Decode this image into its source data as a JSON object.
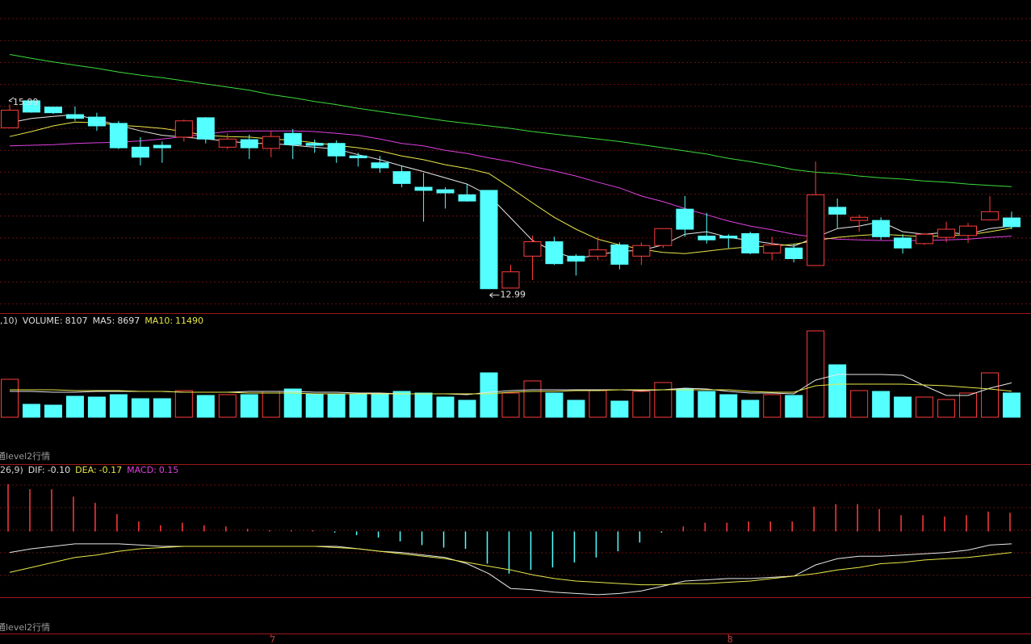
{
  "chart_data": [
    {
      "type": "candlestick",
      "up_color": "#ff3c3c",
      "down_color": "#54ffff",
      "ylim": [
        12.6,
        17.6
      ],
      "categories": [
        null,
        null,
        null,
        null,
        null,
        null,
        null,
        null,
        null,
        null,
        null,
        null,
        "7",
        null,
        null,
        null,
        null,
        null,
        null,
        null,
        null,
        null,
        null,
        null,
        null,
        null,
        null,
        null,
        null,
        null,
        null,
        null,
        null,
        "8",
        null,
        null,
        null,
        null,
        null,
        null,
        null,
        null,
        null,
        null,
        null,
        null,
        null
      ],
      "open": [
        15.56,
        15.99,
        15.89,
        15.77,
        15.73,
        15.63,
        15.25,
        15.28,
        15.41,
        15.72,
        15.25,
        15.37,
        15.23,
        15.47,
        15.31,
        15.31,
        15.11,
        15.0,
        14.86,
        14.61,
        14.57,
        14.49,
        14.56,
        13.0,
        13.51,
        13.74,
        13.51,
        13.51,
        13.69,
        13.51,
        13.68,
        14.26,
        13.83,
        13.83,
        13.87,
        13.56,
        13.64,
        13.36,
        14.29,
        14.08,
        14.08,
        13.8,
        13.71,
        13.81,
        13.84,
        14.09,
        14.12
      ],
      "high": [
        15.93,
        15.99,
        15.89,
        15.9,
        15.8,
        15.67,
        15.41,
        15.34,
        15.69,
        15.73,
        15.47,
        15.45,
        15.51,
        15.54,
        15.37,
        15.36,
        15.16,
        15.11,
        14.96,
        14.84,
        14.61,
        14.66,
        14.56,
        13.37,
        13.84,
        13.82,
        13.54,
        13.82,
        13.73,
        13.73,
        13.95,
        14.47,
        14.2,
        13.86,
        13.9,
        13.82,
        13.71,
        15.02,
        14.43,
        14.17,
        14.13,
        13.86,
        13.88,
        14.06,
        14.04,
        14.47,
        14.22
      ],
      "low": [
        15.56,
        15.8,
        15.78,
        15.67,
        15.51,
        15.22,
        14.96,
        15.0,
        15.34,
        15.31,
        15.22,
        15.06,
        15.09,
        15.06,
        15.16,
        15.0,
        14.94,
        14.84,
        14.61,
        14.06,
        14.27,
        14.38,
        12.99,
        13.0,
        13.13,
        13.37,
        13.2,
        13.45,
        13.3,
        13.37,
        13.64,
        13.82,
        13.71,
        13.64,
        13.54,
        13.45,
        13.41,
        13.36,
        13.96,
        13.9,
        13.77,
        13.55,
        13.69,
        13.73,
        13.72,
        14.08,
        13.94
      ],
      "close": [
        15.84,
        15.81,
        15.8,
        15.71,
        15.59,
        15.24,
        15.09,
        15.24,
        15.67,
        15.38,
        15.38,
        15.24,
        15.42,
        15.29,
        15.28,
        15.11,
        15.08,
        14.92,
        14.67,
        14.56,
        14.52,
        14.39,
        12.99,
        13.26,
        13.74,
        13.39,
        13.43,
        13.61,
        13.38,
        13.68,
        13.95,
        13.94,
        13.77,
        13.8,
        13.56,
        13.69,
        13.47,
        14.49,
        14.18,
        14.13,
        13.82,
        13.64,
        13.86,
        13.94,
        13.99,
        14.22,
        13.98
      ],
      "series": [
        {
          "color": "#3cdc3c",
          "values": [
            16.73,
            16.67,
            16.61,
            16.56,
            16.51,
            16.45,
            16.4,
            16.36,
            16.31,
            16.26,
            16.21,
            16.16,
            16.09,
            16.04,
            15.98,
            15.93,
            15.87,
            15.82,
            15.77,
            15.72,
            15.67,
            15.63,
            15.59,
            15.55,
            15.5,
            15.46,
            15.42,
            15.38,
            15.34,
            15.29,
            15.24,
            15.19,
            15.14,
            15.07,
            15.02,
            14.96,
            14.89,
            14.85,
            14.83,
            14.79,
            14.76,
            14.74,
            14.71,
            14.69,
            14.66,
            14.64,
            14.62
          ]
        },
        {
          "color": "#e040e0",
          "values": [
            15.27,
            15.28,
            15.29,
            15.31,
            15.32,
            15.33,
            15.35,
            15.38,
            15.42,
            15.46,
            15.5,
            15.51,
            15.51,
            15.51,
            15.5,
            15.47,
            15.44,
            15.38,
            15.31,
            15.27,
            15.2,
            15.15,
            15.08,
            15.02,
            14.94,
            14.87,
            14.79,
            14.69,
            14.6,
            14.47,
            14.38,
            14.27,
            14.17,
            14.07,
            13.99,
            13.93,
            13.86,
            13.81,
            13.78,
            13.77,
            13.76,
            13.76,
            13.76,
            13.77,
            13.78,
            13.81,
            13.83
          ]
        },
        {
          "color": "#e8e8e8",
          "values": [
            15.64,
            15.71,
            15.74,
            15.77,
            15.69,
            15.6,
            15.51,
            15.44,
            15.41,
            15.38,
            15.35,
            15.31,
            15.31,
            15.28,
            15.25,
            15.22,
            15.13,
            15.05,
            14.95,
            14.86,
            14.76,
            14.66,
            14.48,
            14.12,
            13.76,
            13.58,
            13.47,
            13.53,
            13.59,
            13.6,
            13.69,
            13.86,
            13.9,
            13.81,
            13.76,
            13.71,
            13.67,
            13.81,
            13.95,
            13.99,
            14.06,
            13.9,
            13.86,
            13.89,
            13.86,
            13.95,
            13.99
          ]
        },
        {
          "color": "#e8e84a",
          "values": [
            15.42,
            15.5,
            15.59,
            15.65,
            15.64,
            15.6,
            15.58,
            15.55,
            15.5,
            15.44,
            15.42,
            15.41,
            15.38,
            15.36,
            15.32,
            15.28,
            15.24,
            15.19,
            15.11,
            15.05,
            14.97,
            14.91,
            14.83,
            14.6,
            14.36,
            14.13,
            13.94,
            13.78,
            13.69,
            13.62,
            13.57,
            13.55,
            13.59,
            13.63,
            13.66,
            13.67,
            13.7,
            13.76,
            13.81,
            13.84,
            13.86,
            13.84,
            13.82,
            13.84,
            13.85,
            13.9,
            13.96
          ]
        }
      ]
    },
    {
      "type": "volume",
      "ylim": [
        0,
        34290
      ],
      "header_prefix": ",10)",
      "fields": [
        {
          "label": "VOLUME:",
          "value": 8107,
          "color": "#e0e0e0"
        },
        {
          "label": "MA5:",
          "value": 8697,
          "color": "#e0e0e0"
        },
        {
          "label": "MA10:",
          "value": 11490,
          "color": "#e8e84a"
        }
      ],
      "values": [
        12700,
        4320,
        4050,
        7020,
        6750,
        7560,
        6210,
        6210,
        8910,
        7290,
        7560,
        7560,
        8640,
        9450,
        7830,
        7830,
        7830,
        7830,
        8640,
        8100,
        6750,
        5670,
        14850,
        8100,
        12150,
        8100,
        5670,
        8910,
        5400,
        8640,
        11610,
        9450,
        8640,
        7560,
        5670,
        7560,
        7290,
        28890,
        17550,
        8910,
        8640,
        6750,
        6750,
        5940,
        8100,
        14850,
        8107
      ],
      "series": [
        {
          "color": "#e8e8e8",
          "values": [
            8640,
            8640,
            8370,
            8370,
            8640,
            8640,
            8640,
            8640,
            8370,
            8370,
            8370,
            8640,
            8640,
            8640,
            8370,
            8370,
            8100,
            8100,
            7830,
            7830,
            7830,
            7560,
            8370,
            8910,
            9180,
            9180,
            9180,
            9180,
            9180,
            8910,
            9180,
            9720,
            9450,
            8640,
            8100,
            8100,
            7830,
            12420,
            14310,
            14310,
            14310,
            14040,
            10530,
            7290,
            7290,
            9720,
            11490
          ]
        },
        {
          "color": "#e8e84a",
          "values": [
            9180,
            9180,
            9180,
            8910,
            8910,
            8910,
            8640,
            8640,
            8370,
            8370,
            8370,
            8100,
            8100,
            8100,
            7830,
            7830,
            7830,
            7830,
            7830,
            7830,
            7830,
            7830,
            7830,
            8370,
            8640,
            8640,
            8910,
            8910,
            9180,
            9180,
            9180,
            9180,
            9180,
            9180,
            8640,
            8370,
            8370,
            10530,
            11070,
            11070,
            11070,
            11070,
            10800,
            10530,
            9990,
            9450,
            8697
          ]
        }
      ],
      "footer": "通level2行情"
    },
    {
      "type": "macd",
      "ylim": [
        -0.53,
        0.53
      ],
      "header_prefix": "26,9)",
      "fields": [
        {
          "label": "DIF:",
          "value": {
            "value": -0.1,
            "label": "-0.10"
          },
          "color": "#e0e0e0"
        },
        {
          "label": "DEA:",
          "value": -0.17,
          "color": "#e8e84a"
        },
        {
          "label": "MACD:",
          "value": 0.15,
          "color": "#e040e0"
        }
      ],
      "values": [
        0.38,
        0.34,
        0.34,
        0.28,
        0.23,
        0.14,
        0.08,
        0.05,
        0.07,
        0.05,
        0.04,
        0.02,
        0.01,
        0.01,
        0.01,
        -0.01,
        -0.03,
        -0.05,
        -0.08,
        -0.11,
        -0.13,
        -0.14,
        -0.26,
        -0.34,
        -0.31,
        -0.29,
        -0.25,
        -0.21,
        -0.16,
        -0.09,
        -0.01,
        0.04,
        0.07,
        0.07,
        0.08,
        0.08,
        0.08,
        0.2,
        0.22,
        0.22,
        0.18,
        0.13,
        0.13,
        0.12,
        0.13,
        0.16,
        0.15
      ],
      "series": [
        {
          "color": "#e8e8e8",
          "values": [
            -0.17,
            -0.14,
            -0.12,
            -0.1,
            -0.1,
            -0.1,
            -0.11,
            -0.12,
            -0.12,
            -0.12,
            -0.12,
            -0.12,
            -0.12,
            -0.12,
            -0.12,
            -0.12,
            -0.14,
            -0.16,
            -0.17,
            -0.19,
            -0.21,
            -0.26,
            -0.34,
            -0.46,
            -0.47,
            -0.49,
            -0.5,
            -0.51,
            -0.5,
            -0.48,
            -0.44,
            -0.4,
            -0.39,
            -0.38,
            -0.38,
            -0.37,
            -0.36,
            -0.27,
            -0.22,
            -0.2,
            -0.2,
            -0.19,
            -0.18,
            -0.17,
            -0.15,
            -0.11,
            -0.1
          ]
        },
        {
          "color": "#e8e84a",
          "values": [
            -0.33,
            -0.29,
            -0.25,
            -0.21,
            -0.19,
            -0.16,
            -0.14,
            -0.13,
            -0.12,
            -0.12,
            -0.12,
            -0.12,
            -0.12,
            -0.12,
            -0.12,
            -0.13,
            -0.14,
            -0.16,
            -0.18,
            -0.2,
            -0.22,
            -0.25,
            -0.28,
            -0.31,
            -0.35,
            -0.38,
            -0.4,
            -0.41,
            -0.42,
            -0.43,
            -0.43,
            -0.42,
            -0.42,
            -0.41,
            -0.4,
            -0.38,
            -0.36,
            -0.34,
            -0.31,
            -0.29,
            -0.26,
            -0.25,
            -0.23,
            -0.22,
            -0.21,
            -0.19,
            -0.17
          ]
        }
      ],
      "footer": "通level2行情"
    }
  ]
}
